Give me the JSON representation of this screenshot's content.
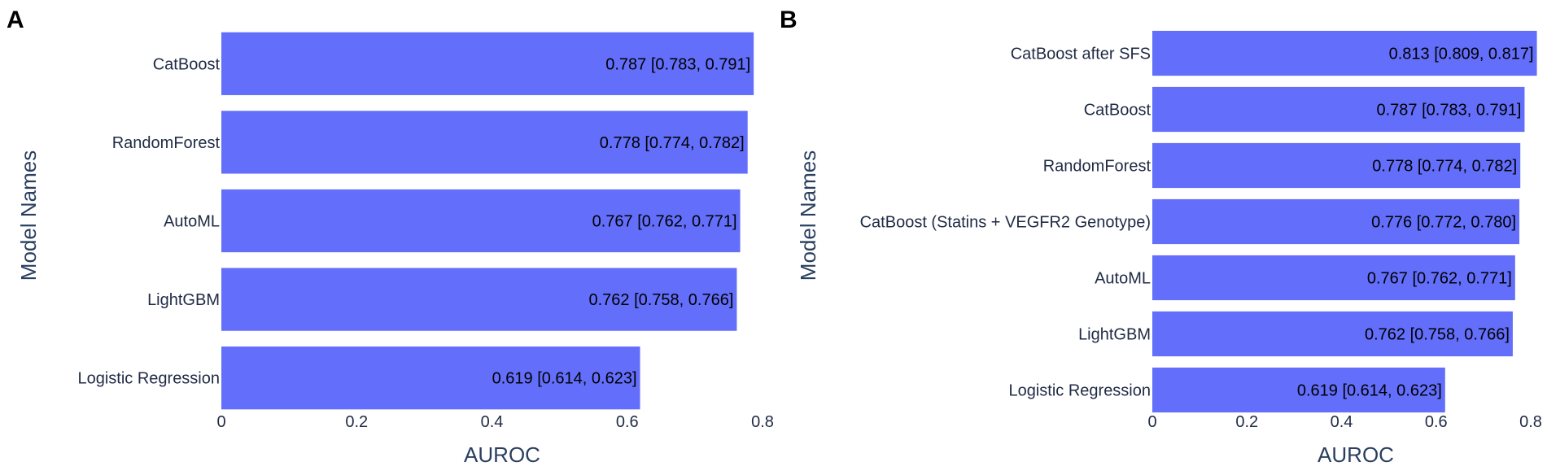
{
  "chart_data": [
    {
      "panel_label": "A",
      "type": "bar",
      "orientation": "horizontal",
      "categories": [
        "CatBoost",
        "RandomForest",
        "AutoML",
        "LightGBM",
        "Logistic Regression"
      ],
      "values": [
        0.787,
        0.778,
        0.767,
        0.762,
        0.619
      ],
      "data_labels": [
        "0.787 [0.783, 0.791]",
        "0.778 [0.774, 0.782]",
        "0.767 [0.762, 0.771]",
        "0.762 [0.758, 0.766]",
        "0.619 [0.614, 0.623]"
      ],
      "xlabel": "AUROC",
      "ylabel": "Model Names",
      "xlim": [
        0,
        0.8
      ],
      "xticks": [
        0,
        0.2,
        0.4,
        0.6,
        0.8
      ],
      "xtick_labels": [
        "0",
        "0.2",
        "0.4",
        "0.6",
        "0.8"
      ],
      "bar_color": "#636efa",
      "grid": false
    },
    {
      "panel_label": "B",
      "type": "bar",
      "orientation": "horizontal",
      "categories": [
        "CatBoost after SFS",
        "CatBoost",
        "RandomForest",
        "CatBoost (Statins + VEGFR2 Genotype)",
        "AutoML",
        "LightGBM",
        "Logistic Regression"
      ],
      "values": [
        0.813,
        0.787,
        0.778,
        0.776,
        0.767,
        0.762,
        0.619
      ],
      "data_labels": [
        "0.813 [0.809, 0.817]",
        "0.787 [0.783, 0.791]",
        "0.778 [0.774, 0.782]",
        "0.776 [0.772, 0.780]",
        "0.767 [0.762, 0.771]",
        "0.762 [0.758, 0.766]",
        "0.619 [0.614, 0.623]"
      ],
      "xlabel": "AUROC",
      "ylabel": "Model Names",
      "xlim": [
        0,
        0.8
      ],
      "xticks": [
        0,
        0.2,
        0.4,
        0.6,
        0.8
      ],
      "xtick_labels": [
        "0",
        "0.2",
        "0.4",
        "0.6",
        "0.8"
      ],
      "bar_color": "#636efa",
      "grid": false
    }
  ],
  "colors": {
    "bar": "#636efa",
    "text": "#2a3f5f",
    "label_text": "#1f2a44",
    "panel_label": "#000000",
    "background": "#ffffff"
  }
}
